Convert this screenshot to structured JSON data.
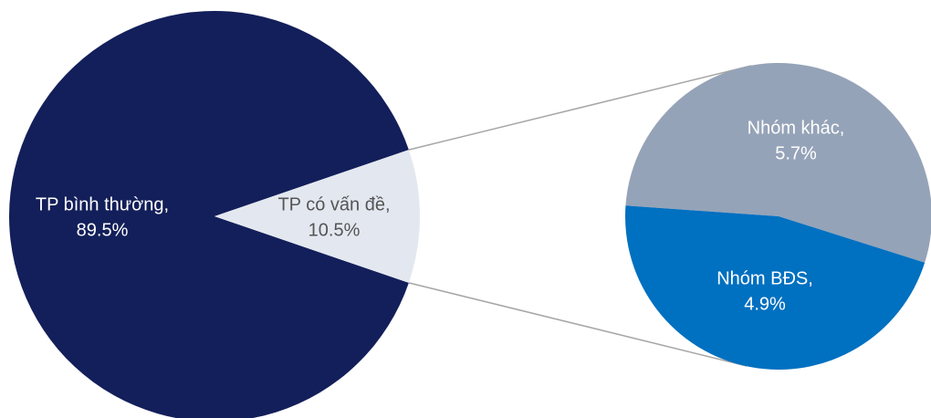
{
  "chart_data": {
    "type": "pie_of_pie",
    "categories": [
      "TP bình thường,",
      "TP có vấn đề,"
    ],
    "values": [
      89.5,
      10.5
    ],
    "value_labels": [
      "89.5%",
      "10.5%"
    ],
    "colors": [
      "#131f5a",
      "#e3e8f0"
    ],
    "label_colors": [
      "#ffffff",
      "#555555"
    ],
    "secondary": {
      "categories": [
        "Nhóm khác,",
        "Nhóm BĐS,"
      ],
      "values": [
        5.7,
        4.9
      ],
      "value_labels": [
        "5.7%",
        "4.9%"
      ],
      "colors": [
        "#95a3b8",
        "#0070c0"
      ],
      "label_colors": [
        "#ffffff",
        "#ffffff"
      ]
    }
  }
}
